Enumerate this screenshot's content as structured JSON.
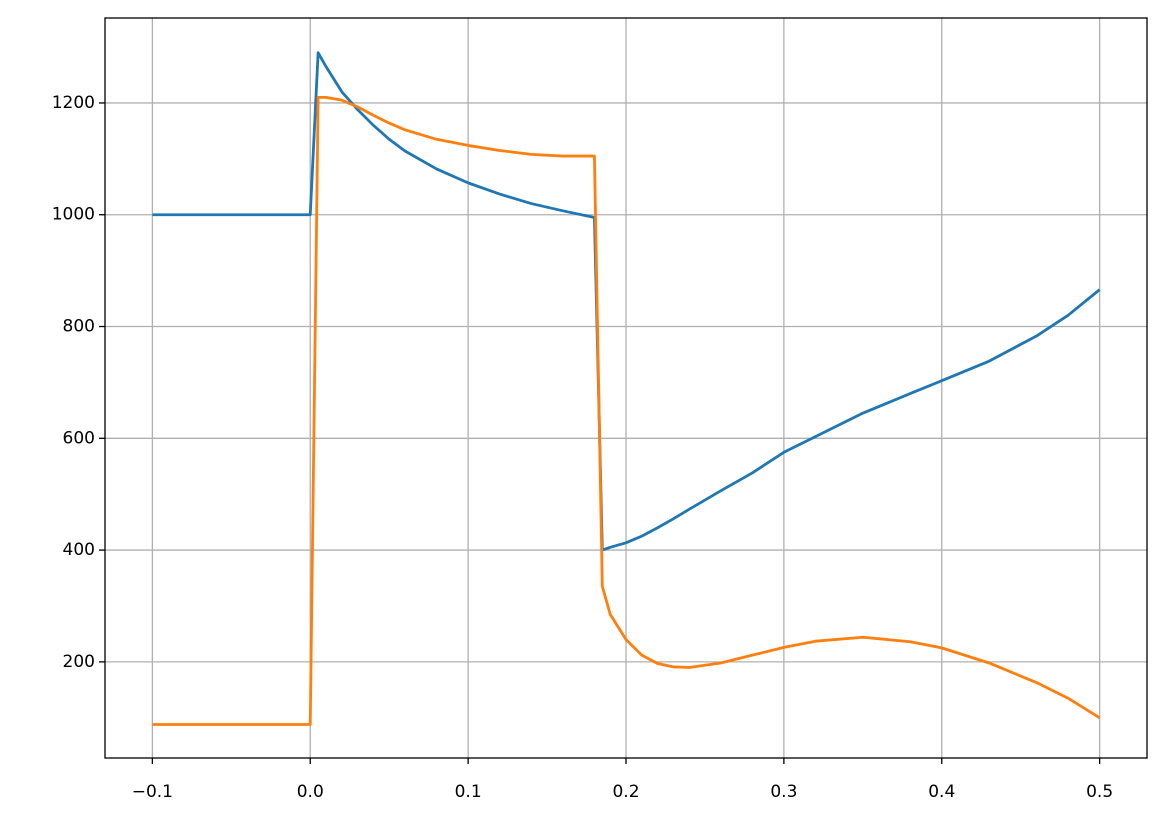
{
  "chart_data": {
    "type": "line",
    "x": [
      -0.1,
      0,
      0.005,
      0.01,
      0.02,
      0.03,
      0.04,
      0.05,
      0.06,
      0.08,
      0.1,
      0.12,
      0.14,
      0.16,
      0.18,
      0.185,
      0.19,
      0.2,
      0.21,
      0.22,
      0.23,
      0.24,
      0.26,
      0.28,
      0.3,
      0.32,
      0.35,
      0.38,
      0.4,
      0.43,
      0.46,
      0.48,
      0.5
    ],
    "series": [
      {
        "color": "#1f77b4",
        "values": [
          1000,
          1000,
          1290,
          1265,
          1220,
          1188,
          1160,
          1135,
          1114,
          1082,
          1057,
          1037,
          1020,
          1007,
          995,
          400,
          405,
          413,
          425,
          440,
          456,
          473,
          506,
          538,
          575,
          603,
          645,
          680,
          703,
          738,
          783,
          820,
          866
        ]
      },
      {
        "color": "#ff7f0e",
        "values": [
          88,
          88,
          1210,
          1210,
          1205,
          1193,
          1178,
          1164,
          1152,
          1135,
          1124,
          1115,
          1108,
          1105,
          1105,
          335,
          285,
          240,
          212,
          197,
          191,
          190,
          198,
          212,
          226,
          237,
          244,
          236,
          225,
          198,
          163,
          135,
          100
        ]
      }
    ],
    "xlim": [
      -0.13,
      0.53
    ],
    "ylim": [
      28,
      1352
    ],
    "xticks": [
      {
        "value": -0.1,
        "label": "−0.1"
      },
      {
        "value": 0,
        "label": "0.0"
      },
      0.1,
      0.2,
      0.3,
      0.4,
      0.5
    ],
    "yticks": [
      200,
      400,
      600,
      800,
      1000,
      1200
    ],
    "grid": true
  }
}
